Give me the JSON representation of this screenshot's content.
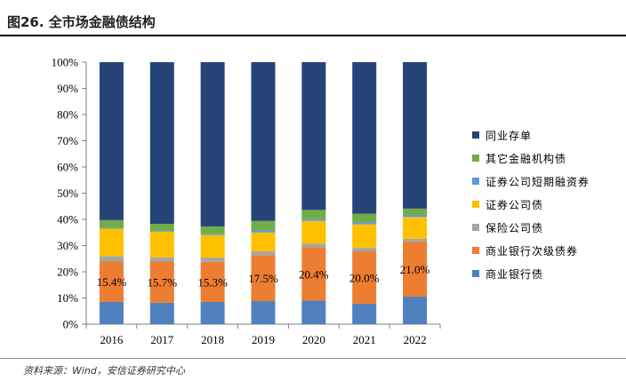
{
  "title": "图26. 全市场金融债结构",
  "source": "资料来源：Wind，安信证券研究中心",
  "chart_data": {
    "type": "bar",
    "stacked": true,
    "categories": [
      "2016",
      "2017",
      "2018",
      "2019",
      "2020",
      "2021",
      "2022"
    ],
    "ylim": [
      0,
      100
    ],
    "y_ticks": [
      "0%",
      "10%",
      "20%",
      "30%",
      "40%",
      "50%",
      "60%",
      "70%",
      "80%",
      "90%",
      "100%"
    ],
    "series": [
      {
        "name": "商业银行债",
        "color": "#4E81BD",
        "values": [
          8.5,
          8.2,
          8.5,
          8.8,
          9.0,
          7.8,
          10.5
        ]
      },
      {
        "name": "商业银行次级债券",
        "color": "#ED7D31",
        "values": [
          15.4,
          15.7,
          15.3,
          17.5,
          20.4,
          20.0,
          21.0
        ]
      },
      {
        "name": "保险公司债",
        "color": "#A5A5A5",
        "values": [
          2.0,
          1.6,
          1.6,
          1.5,
          1.4,
          1.3,
          1.1
        ]
      },
      {
        "name": "证券公司债",
        "color": "#FFC000",
        "values": [
          10.5,
          9.8,
          8.6,
          7.2,
          8.6,
          9.0,
          8.3
        ]
      },
      {
        "name": "证券公司短期融资券",
        "color": "#5B9BD5",
        "values": [
          0.3,
          0.3,
          0.3,
          0.9,
          0.7,
          0.8,
          0.8
        ]
      },
      {
        "name": "其它金融机构债",
        "color": "#70AD47",
        "values": [
          3.0,
          2.7,
          3.0,
          3.5,
          3.5,
          3.3,
          2.4
        ]
      },
      {
        "name": "同业存单",
        "color": "#264478",
        "values": [
          60.3,
          61.7,
          62.7,
          60.6,
          56.4,
          57.8,
          55.9
        ]
      }
    ],
    "data_labels": [
      "15.4%",
      "15.7%",
      "15.3%",
      "17.5%",
      "20.4%",
      "20.0%",
      "21.0%"
    ],
    "legend_position": "right",
    "grid": false
  }
}
